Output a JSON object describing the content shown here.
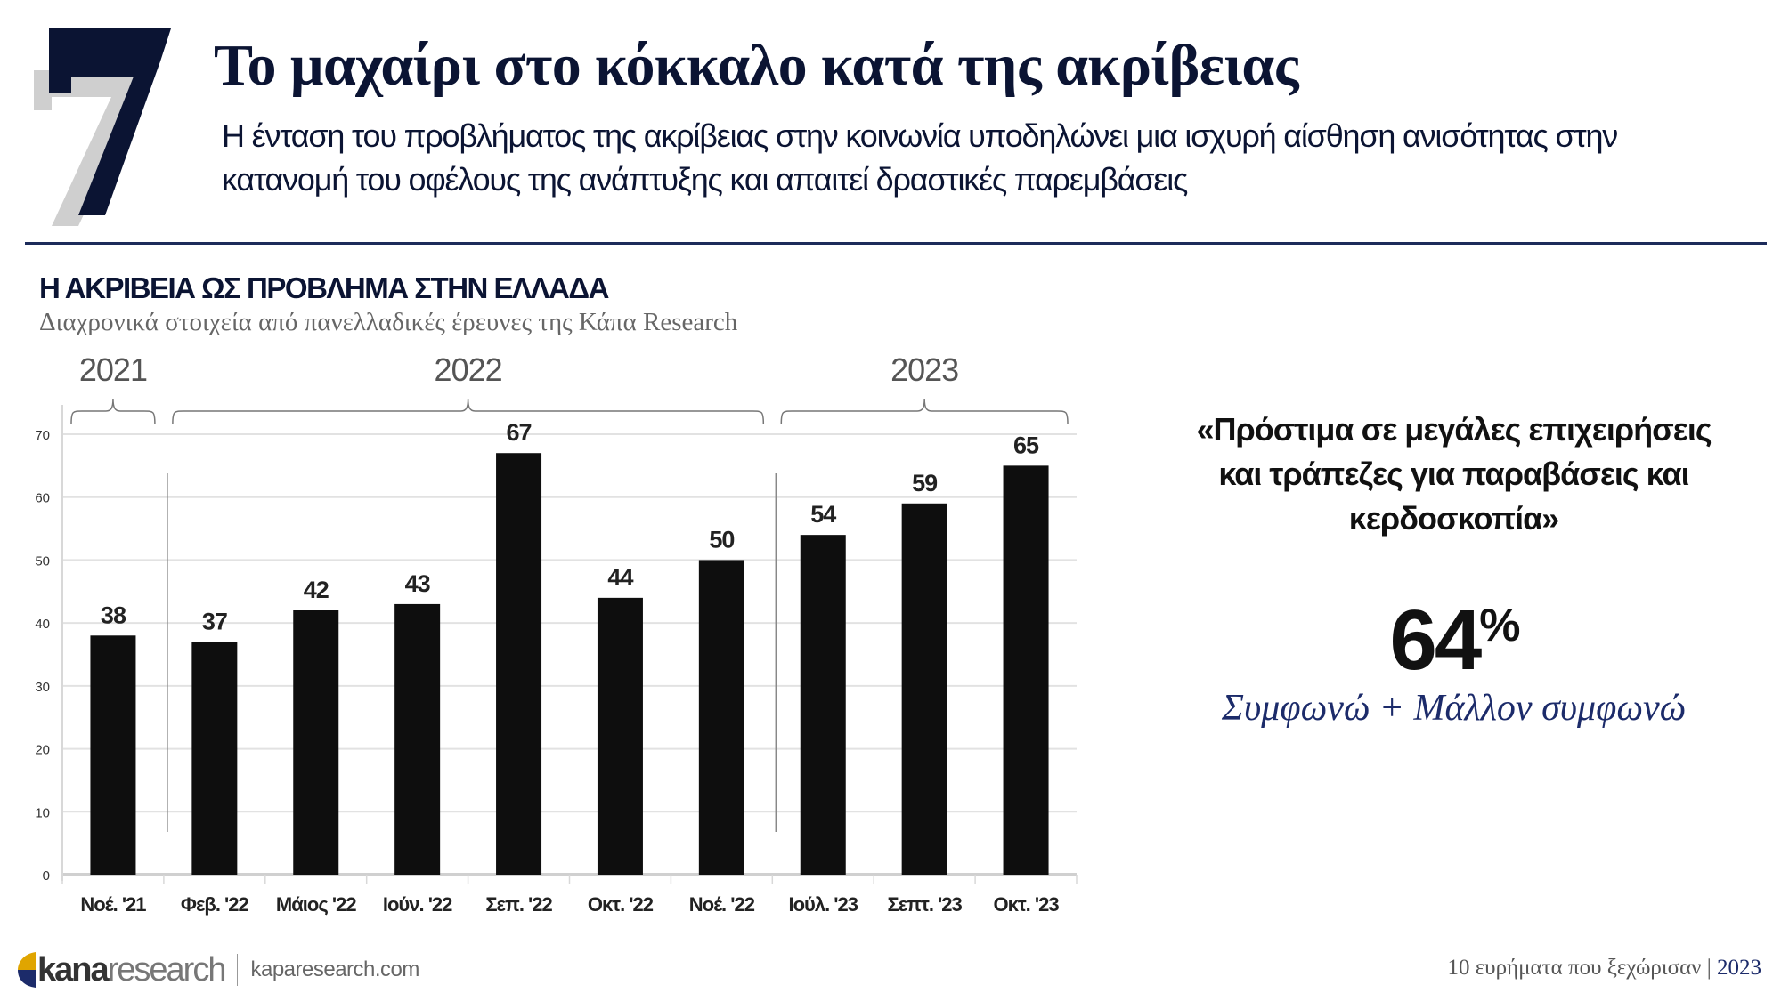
{
  "header": {
    "number": "7",
    "title": "Το μαχαίρι στο κόκκαλο κατά της ακρίβειας",
    "subtitle_lines": [
      "Η ένταση του προβλήματος της ακρίβειας στην κοινωνία υποδηλώνει μια ισχυρή αίσθηση ανισότητας στην",
      "κατανομή του οφέλους της ανάπτυξης και απαιτεί δραστικές παρεμβάσεις"
    ]
  },
  "chart_data": {
    "type": "bar",
    "title": "Η ΑΚΡΙΒΕΙΑ ΩΣ ΠΡΟΒΛΗΜΑ ΣΤΗΝ ΕΛΛΑΔΑ",
    "subtitle": "Διαχρονικά στοιχεία από πανελλαδικές έρευνες της Κάπα Research",
    "categories": [
      "Νοέ. '21",
      "Φεβ. '22",
      "Μάιος '22",
      "Ιούν. '22",
      "Σεπ. '22",
      "Οκτ. '22",
      "Νοέ. '22",
      "Ιούλ. '23",
      "Σεπτ. '23",
      "Οκτ. '23"
    ],
    "values": [
      38,
      37,
      42,
      43,
      67,
      44,
      50,
      54,
      59,
      65
    ],
    "ylim": [
      0,
      70
    ],
    "yticks": [
      0,
      10,
      20,
      30,
      40,
      50,
      60,
      70
    ],
    "grid": true,
    "year_groups": [
      {
        "label": "2021",
        "start": 0,
        "end": 0
      },
      {
        "label": "2022",
        "start": 1,
        "end": 6
      },
      {
        "label": "2023",
        "start": 7,
        "end": 9
      }
    ],
    "bar_color": "#0e0e0e"
  },
  "callout": {
    "quote_lines": [
      "«Πρόστιμα σε μεγάλες επιχειρήσεις",
      "και τράπεζες για παραβάσεις και",
      "κερδοσκοπία»"
    ],
    "value": "64",
    "unit": "%",
    "caption": "Συμφωνώ + Μάλλον συμφωνώ"
  },
  "footer": {
    "logo_bold": "kana",
    "logo_light": "research",
    "site": "kaparesearch.com",
    "series": "10 ευρήματα που ξεχώρισαν",
    "separator": "|",
    "year": "2023"
  }
}
